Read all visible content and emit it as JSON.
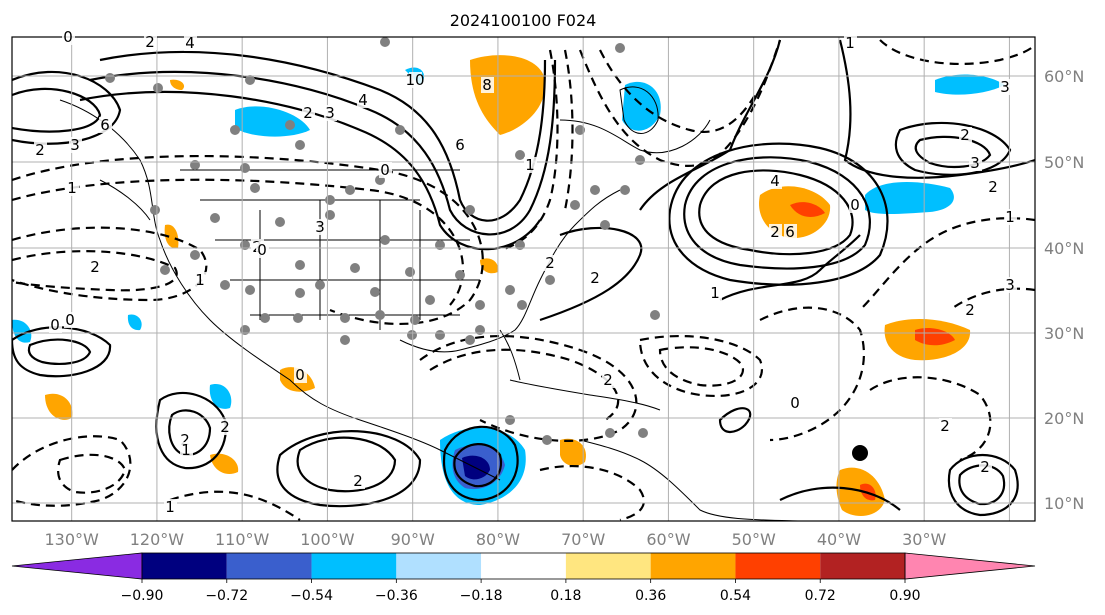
{
  "title": "2024100100 F024",
  "map": {
    "lon_labels": [
      "130°W",
      "120°W",
      "110°W",
      "100°W",
      "90°W",
      "80°W",
      "70°W",
      "60°W",
      "50°W",
      "40°W",
      "30°W"
    ],
    "lat_labels": [
      "60°N",
      "50°N",
      "40°N",
      "30°N",
      "20°N",
      "10°N"
    ],
    "lon_range": [
      -137,
      -17
    ],
    "lat_range": [
      8,
      66
    ],
    "label_color": "#808080",
    "gridlines": true
  },
  "colorbar": {
    "ticks": [
      "−0.90",
      "−0.72",
      "−0.54",
      "−0.36",
      "−0.18",
      "0.18",
      "0.36",
      "0.54",
      "0.72",
      "0.90"
    ],
    "colors": [
      "#8a2be2",
      "#00007f",
      "#3a5fcd",
      "#00bfff",
      "#b0e0ff",
      "#ffffff",
      "#ffe680",
      "#ffa500",
      "#ff4000",
      "#b22222",
      "#ff85b0"
    ],
    "extend": "both"
  },
  "contour_labels": [
    "0",
    "2",
    "4",
    "6",
    "3",
    "2",
    "10",
    "8",
    "6",
    "4",
    "3",
    "2",
    "1",
    "0",
    "3",
    "2",
    "1",
    "2",
    "0",
    "1",
    "2",
    "6",
    "4",
    "2",
    "1",
    "3",
    "2",
    "2",
    "1",
    "2",
    "0",
    "2",
    "3",
    "2",
    "2",
    "1",
    "0",
    "2",
    "1",
    "2",
    "2",
    "0",
    "0",
    "2",
    "3",
    "1",
    "0"
  ]
}
